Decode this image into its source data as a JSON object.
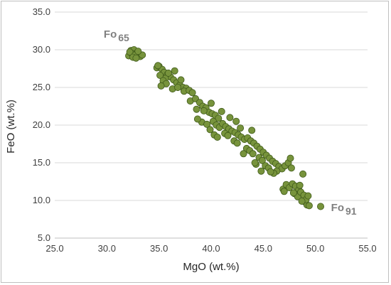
{
  "chart_data": {
    "type": "scatter",
    "title": "",
    "xlabel": "MgO (wt.%)",
    "ylabel": "FeO (wt.%)",
    "xlim": [
      25.0,
      55.0
    ],
    "ylim": [
      5.0,
      35.0
    ],
    "xticks": [
      "25.0",
      "30.0",
      "35.0",
      "40.0",
      "45.0",
      "50.0",
      "55.0"
    ],
    "yticks": [
      "5.0",
      "10.0",
      "15.0",
      "20.0",
      "25.0",
      "30.0",
      "35.0"
    ],
    "grid": "horizontal",
    "legend": "none",
    "marker_color": "#77933c",
    "marker_edge": "#3f5a1a",
    "annotations": [
      {
        "base": "Fo",
        "sub": "65",
        "x": 29.7,
        "y": 31.6
      },
      {
        "base": "Fo",
        "sub": "91",
        "x": 51.5,
        "y": 8.6
      }
    ],
    "series": [
      {
        "points": [
          [
            32.1,
            29.2
          ],
          [
            32.3,
            29.9
          ],
          [
            32.6,
            30.0
          ],
          [
            32.4,
            29.5
          ],
          [
            32.9,
            29.6
          ],
          [
            33.2,
            29.1
          ],
          [
            33.4,
            29.3
          ],
          [
            32.2,
            29.7
          ],
          [
            32.7,
            29.3
          ],
          [
            33.0,
            29.8
          ],
          [
            32.5,
            29.0
          ],
          [
            32.8,
            28.9
          ],
          [
            34.8,
            27.6
          ],
          [
            35.0,
            27.8
          ],
          [
            35.3,
            27.4
          ],
          [
            35.5,
            27.0
          ],
          [
            35.8,
            26.7
          ],
          [
            36.1,
            26.4
          ],
          [
            35.6,
            26.2
          ],
          [
            35.1,
            26.6
          ],
          [
            35.4,
            25.9
          ],
          [
            35.7,
            25.5
          ],
          [
            36.4,
            26.0
          ],
          [
            36.7,
            25.6
          ],
          [
            37.0,
            25.3
          ],
          [
            37.3,
            25.0
          ],
          [
            37.6,
            24.9
          ],
          [
            36.3,
            24.8
          ],
          [
            36.8,
            25.0
          ],
          [
            37.4,
            24.5
          ],
          [
            37.9,
            24.6
          ],
          [
            36.5,
            27.2
          ],
          [
            37.1,
            26.0
          ],
          [
            35.2,
            25.2
          ],
          [
            34.9,
            27.9
          ],
          [
            35.9,
            26.9
          ],
          [
            38.2,
            24.3
          ],
          [
            38.0,
            23.2
          ],
          [
            38.5,
            23.5
          ],
          [
            38.9,
            23.0
          ],
          [
            39.2,
            22.5
          ],
          [
            38.6,
            22.1
          ],
          [
            39.5,
            22.3
          ],
          [
            39.8,
            21.7
          ],
          [
            39.3,
            21.9
          ],
          [
            40.1,
            21.5
          ],
          [
            40.4,
            21.3
          ],
          [
            40.7,
            20.9
          ],
          [
            39.1,
            20.4
          ],
          [
            39.6,
            20.1
          ],
          [
            40.2,
            20.5
          ],
          [
            40.5,
            20.0
          ],
          [
            40.8,
            19.7
          ],
          [
            41.1,
            20.2
          ],
          [
            41.4,
            19.8
          ],
          [
            41.7,
            19.5
          ],
          [
            42.0,
            19.2
          ],
          [
            41.3,
            18.9
          ],
          [
            41.6,
            18.6
          ],
          [
            42.3,
            19.0
          ],
          [
            42.6,
            18.7
          ],
          [
            42.9,
            18.4
          ],
          [
            43.2,
            18.1
          ],
          [
            42.2,
            17.9
          ],
          [
            42.5,
            17.6
          ],
          [
            43.5,
            18.3
          ],
          [
            43.8,
            17.9
          ],
          [
            44.1,
            17.6
          ],
          [
            44.4,
            17.2
          ],
          [
            43.4,
            16.9
          ],
          [
            43.7,
            16.6
          ],
          [
            44.0,
            16.2
          ],
          [
            44.7,
            16.8
          ],
          [
            45.0,
            16.4
          ],
          [
            45.3,
            16.0
          ],
          [
            44.6,
            15.7
          ],
          [
            44.9,
            15.3
          ],
          [
            45.6,
            15.6
          ],
          [
            45.9,
            15.2
          ],
          [
            46.2,
            14.9
          ],
          [
            45.2,
            14.6
          ],
          [
            45.5,
            14.3
          ],
          [
            46.5,
            14.5
          ],
          [
            46.8,
            14.2
          ],
          [
            47.1,
            14.6
          ],
          [
            46.3,
            13.9
          ],
          [
            44.3,
            14.8
          ],
          [
            46.0,
            13.6
          ],
          [
            47.4,
            15.0
          ],
          [
            47.6,
            15.6
          ],
          [
            47.7,
            14.3
          ],
          [
            38.7,
            20.8
          ],
          [
            39.9,
            19.4
          ],
          [
            40.0,
            22.9
          ],
          [
            40.3,
            18.7
          ],
          [
            41.8,
            21.0
          ],
          [
            42.8,
            19.6
          ],
          [
            43.1,
            16.2
          ],
          [
            43.9,
            19.3
          ],
          [
            44.2,
            15.0
          ],
          [
            44.8,
            13.9
          ],
          [
            45.7,
            13.8
          ],
          [
            41.0,
            21.8
          ],
          [
            40.6,
            18.4
          ],
          [
            42.4,
            20.5
          ],
          [
            46.9,
            11.5
          ],
          [
            47.2,
            12.1
          ],
          [
            47.5,
            11.7
          ],
          [
            47.8,
            12.2
          ],
          [
            48.1,
            11.9
          ],
          [
            48.4,
            11.4
          ],
          [
            48.0,
            10.9
          ],
          [
            48.3,
            10.5
          ],
          [
            48.6,
            11.1
          ],
          [
            48.9,
            10.7
          ],
          [
            47.0,
            11.2
          ],
          [
            49.0,
            9.8
          ],
          [
            49.2,
            9.4
          ],
          [
            49.4,
            9.3
          ],
          [
            49.1,
            10.1
          ],
          [
            48.7,
            9.9
          ],
          [
            49.3,
            10.6
          ],
          [
            50.5,
            9.2
          ],
          [
            48.5,
            12.0
          ],
          [
            48.8,
            13.5
          ],
          [
            47.9,
            11.0
          ]
        ]
      }
    ]
  }
}
